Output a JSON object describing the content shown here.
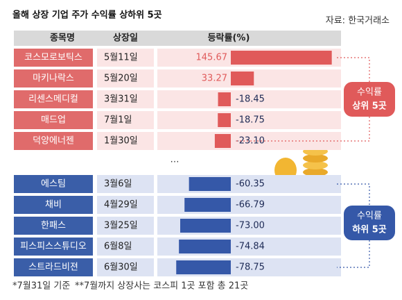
{
  "chart_data": {
    "type": "bar",
    "title": "올해 상장 기업 주가 수익률 상하위 5곳",
    "source": "자료: 한국거래소",
    "headers": [
      "종목명",
      "상장일",
      "등락률(%)"
    ],
    "xlim": [
      -80,
      150
    ],
    "ellipsis": "…",
    "series": [
      {
        "name": [
          "수익률",
          "상위 5곳"
        ],
        "color": "#e05a5a",
        "cell_color": "#e06b6b",
        "light_color": "#fbe5e5",
        "categories": [
          "코스모로보틱스",
          "마키나락스",
          "리센스메디컬",
          "매드업",
          "덕양에너젠"
        ],
        "dates": [
          "5월11일",
          "5월20일",
          "3월31일",
          "7월1일",
          "1월30일"
        ],
        "values": [
          145.67,
          33.27,
          -18.45,
          -18.75,
          -23.1
        ],
        "value_labels": [
          "145.67",
          "33.27",
          "-18.45",
          "-18.75",
          "-23.10"
        ]
      },
      {
        "name": [
          "수익률",
          "하위 5곳"
        ],
        "color": "#3558a8",
        "cell_color": "#3a5ea8",
        "light_color": "#dde3f3",
        "categories": [
          "에스팀",
          "채비",
          "한패스",
          "피스피스스튜디오",
          "스트라드비젼"
        ],
        "dates": [
          "3월6일",
          "4월29일",
          "3월25일",
          "6월8일",
          "6월30일"
        ],
        "values": [
          -60.35,
          -66.79,
          -73,
          -74.84,
          -78.75
        ],
        "value_labels": [
          "-60.35",
          "-66.79",
          "-73.00",
          "-74.84",
          "-78.75"
        ]
      }
    ],
    "footnotes": [
      "*7월31일 기준",
      "**7월까지 상장사는 코스피 1곳 포함  총 21곳"
    ]
  }
}
